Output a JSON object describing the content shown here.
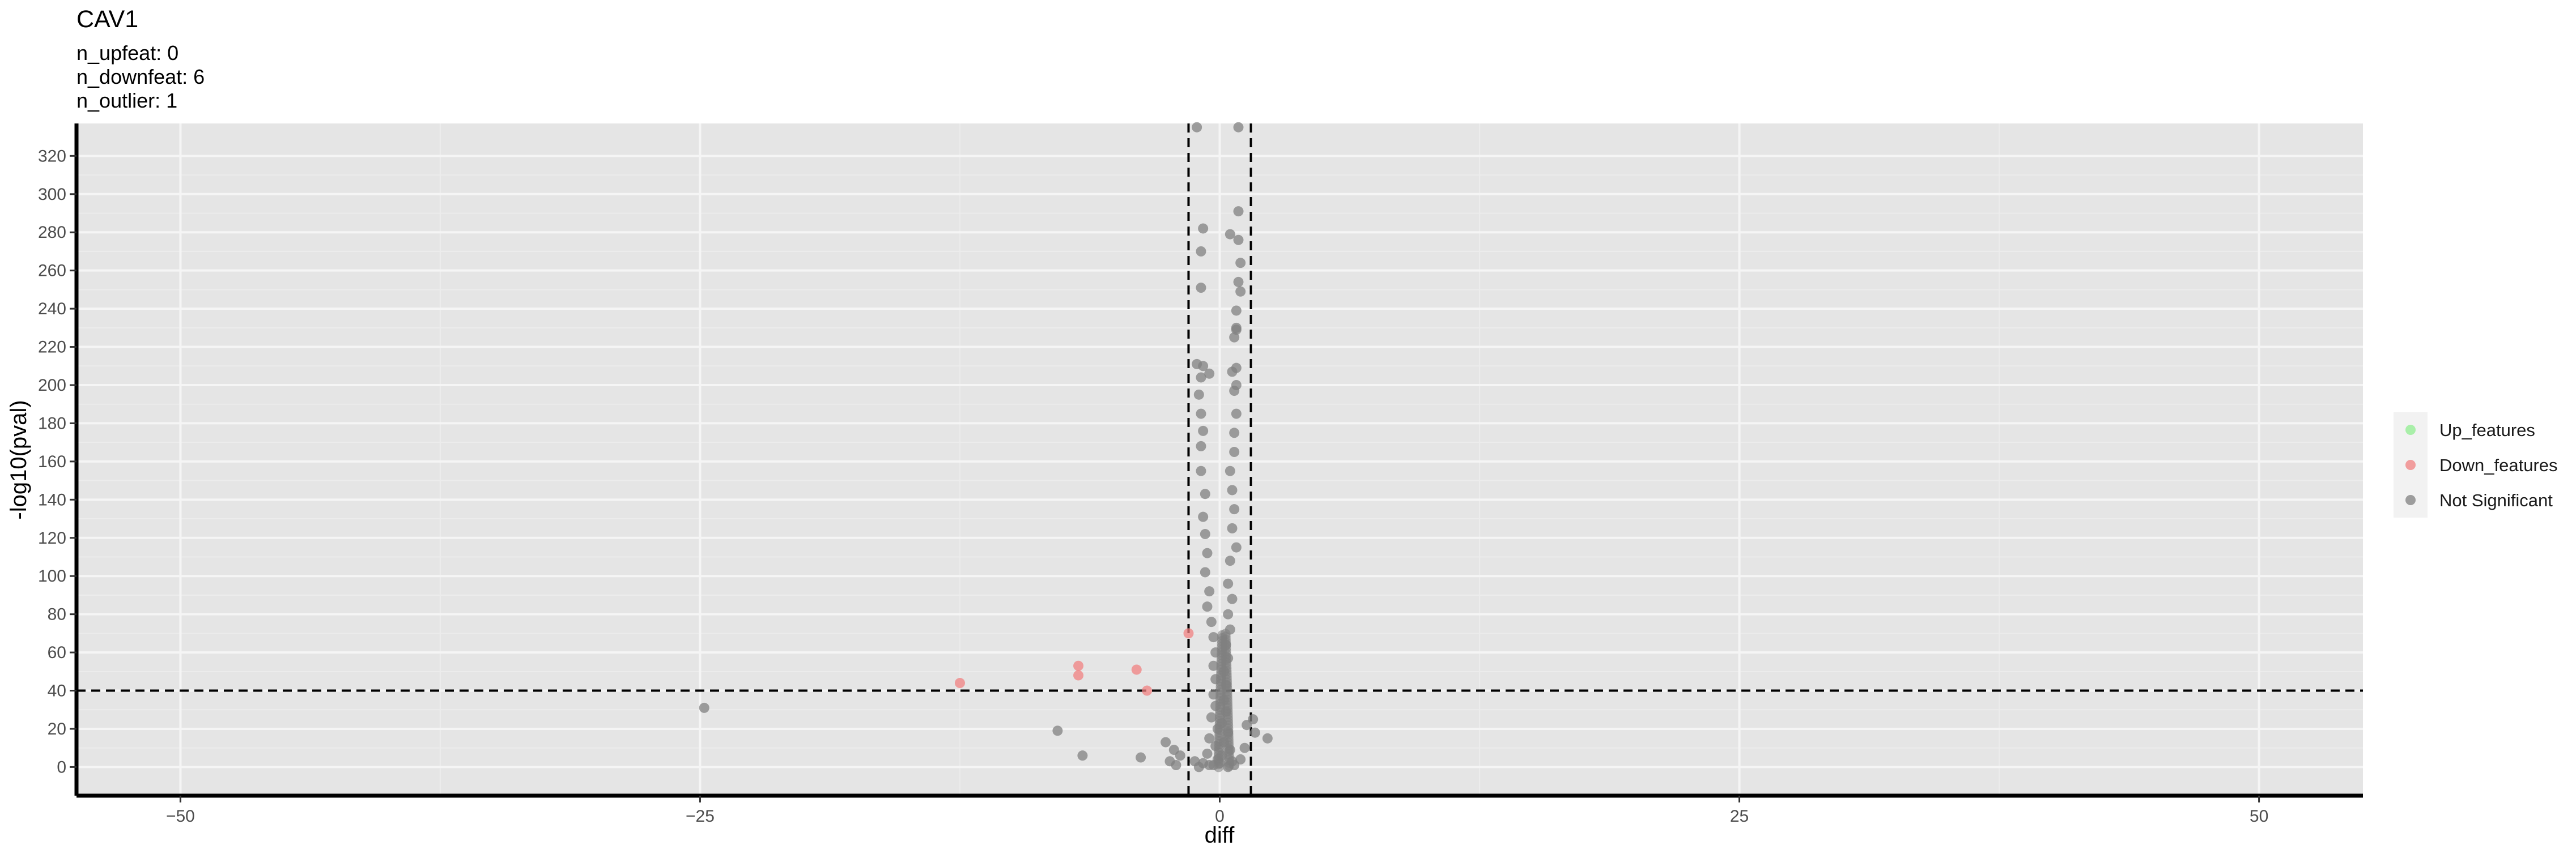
{
  "chart_data": {
    "type": "scatter",
    "title": "CAV1",
    "subtitle_lines": [
      "n_upfeat: 0",
      "n_downfeat: 6",
      "n_outlier: 1"
    ],
    "xlabel": "diff",
    "ylabel": "-log10(pval)",
    "xlim": [
      -55,
      55
    ],
    "ylim": [
      -15,
      337
    ],
    "x_ticks": [
      -50,
      -25,
      0,
      25,
      50
    ],
    "y_ticks": [
      0,
      20,
      40,
      60,
      80,
      100,
      120,
      140,
      160,
      180,
      200,
      220,
      240,
      260,
      280,
      300,
      320
    ],
    "grid": true,
    "legend_position": "right",
    "thresholds": {
      "x": [
        -1.5,
        1.5
      ],
      "y": 40
    },
    "colors": {
      "panel": "#e5e5e5",
      "grid_major": "#f5f5f5",
      "grid_minor": "#ececec",
      "threshold_line": "#000000",
      "axis_line": "#000000"
    },
    "series": [
      {
        "name": "Up_features",
        "color": "#90ee90",
        "points": []
      },
      {
        "name": "Down_features",
        "color": "#f08080",
        "points": [
          {
            "x": -12.5,
            "y": 44
          },
          {
            "x": -6.8,
            "y": 53
          },
          {
            "x": -6.8,
            "y": 48
          },
          {
            "x": -4.0,
            "y": 51
          },
          {
            "x": -3.5,
            "y": 40
          },
          {
            "x": -1.5,
            "y": 70
          }
        ]
      },
      {
        "name": "Not Significant",
        "color": "#808080",
        "points": [
          {
            "x": -24.8,
            "y": 31
          },
          {
            "x": -7.8,
            "y": 19
          },
          {
            "x": -6.6,
            "y": 6
          },
          {
            "x": -3.8,
            "y": 5
          },
          {
            "x": 2.3,
            "y": 15
          },
          {
            "x": 1.6,
            "y": 25
          },
          {
            "x": 1.3,
            "y": 22
          },
          {
            "x": 1.7,
            "y": 18
          },
          {
            "x": 1.2,
            "y": 10
          },
          {
            "x": 1.0,
            "y": 4
          },
          {
            "x": -2.6,
            "y": 13
          },
          {
            "x": -2.2,
            "y": 9
          },
          {
            "x": -1.9,
            "y": 6
          },
          {
            "x": -2.4,
            "y": 3
          },
          {
            "x": -2.1,
            "y": 1
          },
          {
            "x": -1.2,
            "y": 3
          },
          {
            "x": -0.5,
            "y": 1
          },
          {
            "x": 0.4,
            "y": 0
          },
          {
            "x": 0.9,
            "y": 335
          },
          {
            "x": -1.1,
            "y": 335
          },
          {
            "x": -0.8,
            "y": 282
          },
          {
            "x": 0.9,
            "y": 291
          },
          {
            "x": 0.9,
            "y": 276
          },
          {
            "x": 0.5,
            "y": 279
          },
          {
            "x": -0.9,
            "y": 270
          },
          {
            "x": 1.0,
            "y": 264
          },
          {
            "x": 0.9,
            "y": 254
          },
          {
            "x": 1.0,
            "y": 249
          },
          {
            "x": -0.9,
            "y": 251
          },
          {
            "x": 0.8,
            "y": 239
          },
          {
            "x": 0.8,
            "y": 230
          },
          {
            "x": 0.8,
            "y": 229
          },
          {
            "x": 0.7,
            "y": 225
          },
          {
            "x": -1.1,
            "y": 211
          },
          {
            "x": -0.8,
            "y": 210
          },
          {
            "x": 0.8,
            "y": 209
          },
          {
            "x": 0.6,
            "y": 207
          },
          {
            "x": -0.9,
            "y": 204
          },
          {
            "x": 0.8,
            "y": 200
          },
          {
            "x": 0.7,
            "y": 197
          },
          {
            "x": -1.0,
            "y": 195
          },
          {
            "x": -0.5,
            "y": 206
          },
          {
            "x": 0.8,
            "y": 185
          },
          {
            "x": -0.9,
            "y": 185
          },
          {
            "x": 0.7,
            "y": 175
          },
          {
            "x": -0.8,
            "y": 176
          },
          {
            "x": 0.7,
            "y": 165
          },
          {
            "x": -0.9,
            "y": 168
          },
          {
            "x": 0.5,
            "y": 155
          },
          {
            "x": -0.9,
            "y": 155
          },
          {
            "x": 0.6,
            "y": 145
          },
          {
            "x": -0.7,
            "y": 143
          },
          {
            "x": 0.7,
            "y": 135
          },
          {
            "x": -0.8,
            "y": 131
          },
          {
            "x": 0.6,
            "y": 125
          },
          {
            "x": -0.7,
            "y": 122
          },
          {
            "x": 0.8,
            "y": 115
          },
          {
            "x": -0.6,
            "y": 112
          },
          {
            "x": 0.5,
            "y": 108
          },
          {
            "x": -0.7,
            "y": 102
          },
          {
            "x": 0.4,
            "y": 96
          },
          {
            "x": -0.5,
            "y": 92
          },
          {
            "x": 0.6,
            "y": 88
          },
          {
            "x": -0.6,
            "y": 84
          },
          {
            "x": 0.4,
            "y": 80
          },
          {
            "x": -0.4,
            "y": 76
          },
          {
            "x": 0.5,
            "y": 72
          },
          {
            "x": -0.3,
            "y": 68
          },
          {
            "x": 0.3,
            "y": 64
          },
          {
            "x": -0.2,
            "y": 60
          },
          {
            "x": 0.4,
            "y": 57
          },
          {
            "x": -0.3,
            "y": 53
          },
          {
            "x": 0.2,
            "y": 50
          },
          {
            "x": -0.2,
            "y": 46
          },
          {
            "x": 0.3,
            "y": 43
          },
          {
            "x": -0.3,
            "y": 38
          },
          {
            "x": 0.2,
            "y": 35
          },
          {
            "x": -0.2,
            "y": 32
          },
          {
            "x": 0.3,
            "y": 29
          },
          {
            "x": -0.4,
            "y": 26
          },
          {
            "x": 0.1,
            "y": 23
          },
          {
            "x": -0.1,
            "y": 20
          },
          {
            "x": 0.4,
            "y": 18
          },
          {
            "x": -0.5,
            "y": 15
          },
          {
            "x": 0.2,
            "y": 13
          },
          {
            "x": -0.2,
            "y": 11
          },
          {
            "x": 0.5,
            "y": 9
          },
          {
            "x": -0.6,
            "y": 7
          },
          {
            "x": 0.1,
            "y": 6
          },
          {
            "x": -0.1,
            "y": 4
          },
          {
            "x": 0.6,
            "y": 3
          },
          {
            "x": -0.8,
            "y": 2
          },
          {
            "x": 0.0,
            "y": 2
          },
          {
            "x": -0.3,
            "y": 1
          },
          {
            "x": 0.7,
            "y": 1
          },
          {
            "x": -1.0,
            "y": 0
          }
        ]
      }
    ]
  }
}
